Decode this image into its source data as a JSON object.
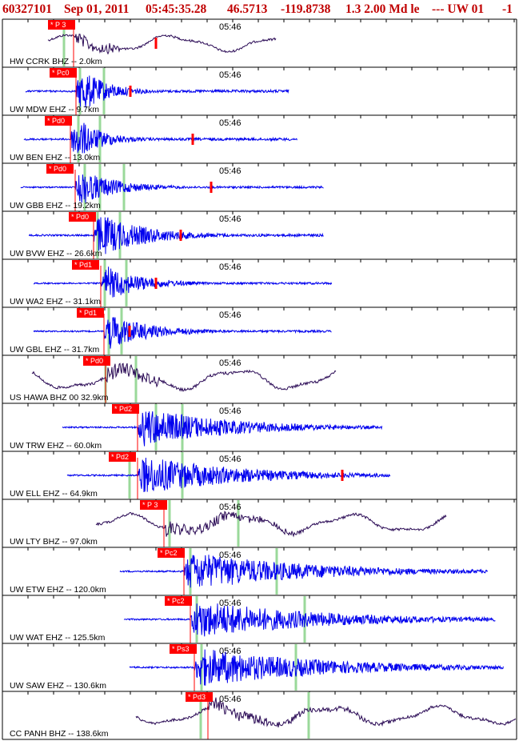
{
  "header": {
    "event_id": "60327101",
    "date": "Sep 01, 2011",
    "time": "05:45:35.28",
    "latitude": "46.5713",
    "longitude": "-119.8738",
    "depth_magnitude": "1.3 2.00 Md le",
    "network_tail": "--- UW 01",
    "trailing": "-1"
  },
  "chart_data": {
    "type": "seismogram",
    "time_tick_label": "05:46",
    "colors": {
      "short_period_trace": "#0000ee",
      "broadband_trace": "#2a0a55",
      "pick_flag": "#ff0000",
      "pick_line": "#ff0000",
      "phase_marker": "#9ad99a",
      "axis": "#000000",
      "header_text": "#c00000"
    },
    "traces": [
      {
        "label": "HW CCRK BHZ -- 2.0km",
        "pick": "P 3",
        "bb": true,
        "amp": 0.7
      },
      {
        "label": "UW MDW EHZ -- 9.7km",
        "pick": "Pc0",
        "bb": false,
        "amp": 1.0
      },
      {
        "label": "UW BEN EHZ -- 13.0km",
        "pick": "Pd0",
        "bb": false,
        "amp": 1.0
      },
      {
        "label": "UW GBB EHZ -- 19.2km",
        "pick": "Pd0",
        "bb": false,
        "amp": 0.8
      },
      {
        "label": "UW BVW EHZ -- 26.6km",
        "pick": "Pd0",
        "bb": false,
        "amp": 1.0
      },
      {
        "label": "UW WA2 EHZ -- 31.1km",
        "pick": "Pd1",
        "bb": false,
        "amp": 0.8
      },
      {
        "label": "UW GBL EHZ -- 31.7km",
        "pick": "Pd1",
        "bb": false,
        "amp": 0.8
      },
      {
        "label": "US HAWA BHZ 00 32.9km",
        "pick": "Pd0",
        "bb": true,
        "amp": 0.9
      },
      {
        "label": "UW TRW EHZ -- 60.0km",
        "pick": "Pd2",
        "bb": false,
        "amp": 0.9
      },
      {
        "label": "UW ELL EHZ -- 64.9km",
        "pick": "Pd2",
        "bb": false,
        "amp": 0.9
      },
      {
        "label": "UW LTY BHZ -- 97.0km",
        "pick": "P 3",
        "bb": true,
        "amp": 0.8
      },
      {
        "label": "UW ETW EHZ -- 120.0km",
        "pick": "Pc2",
        "bb": false,
        "amp": 0.9
      },
      {
        "label": "UW WAT EHZ -- 125.5km",
        "pick": "Pc2",
        "bb": false,
        "amp": 0.9
      },
      {
        "label": "UW SAW EHZ -- 130.6km",
        "pick": "Ps3",
        "bb": false,
        "amp": 0.9
      },
      {
        "label": "CC PANH BHZ -- 138.6km",
        "pick": "Pd3",
        "bb": true,
        "amp": 0.8
      }
    ]
  }
}
